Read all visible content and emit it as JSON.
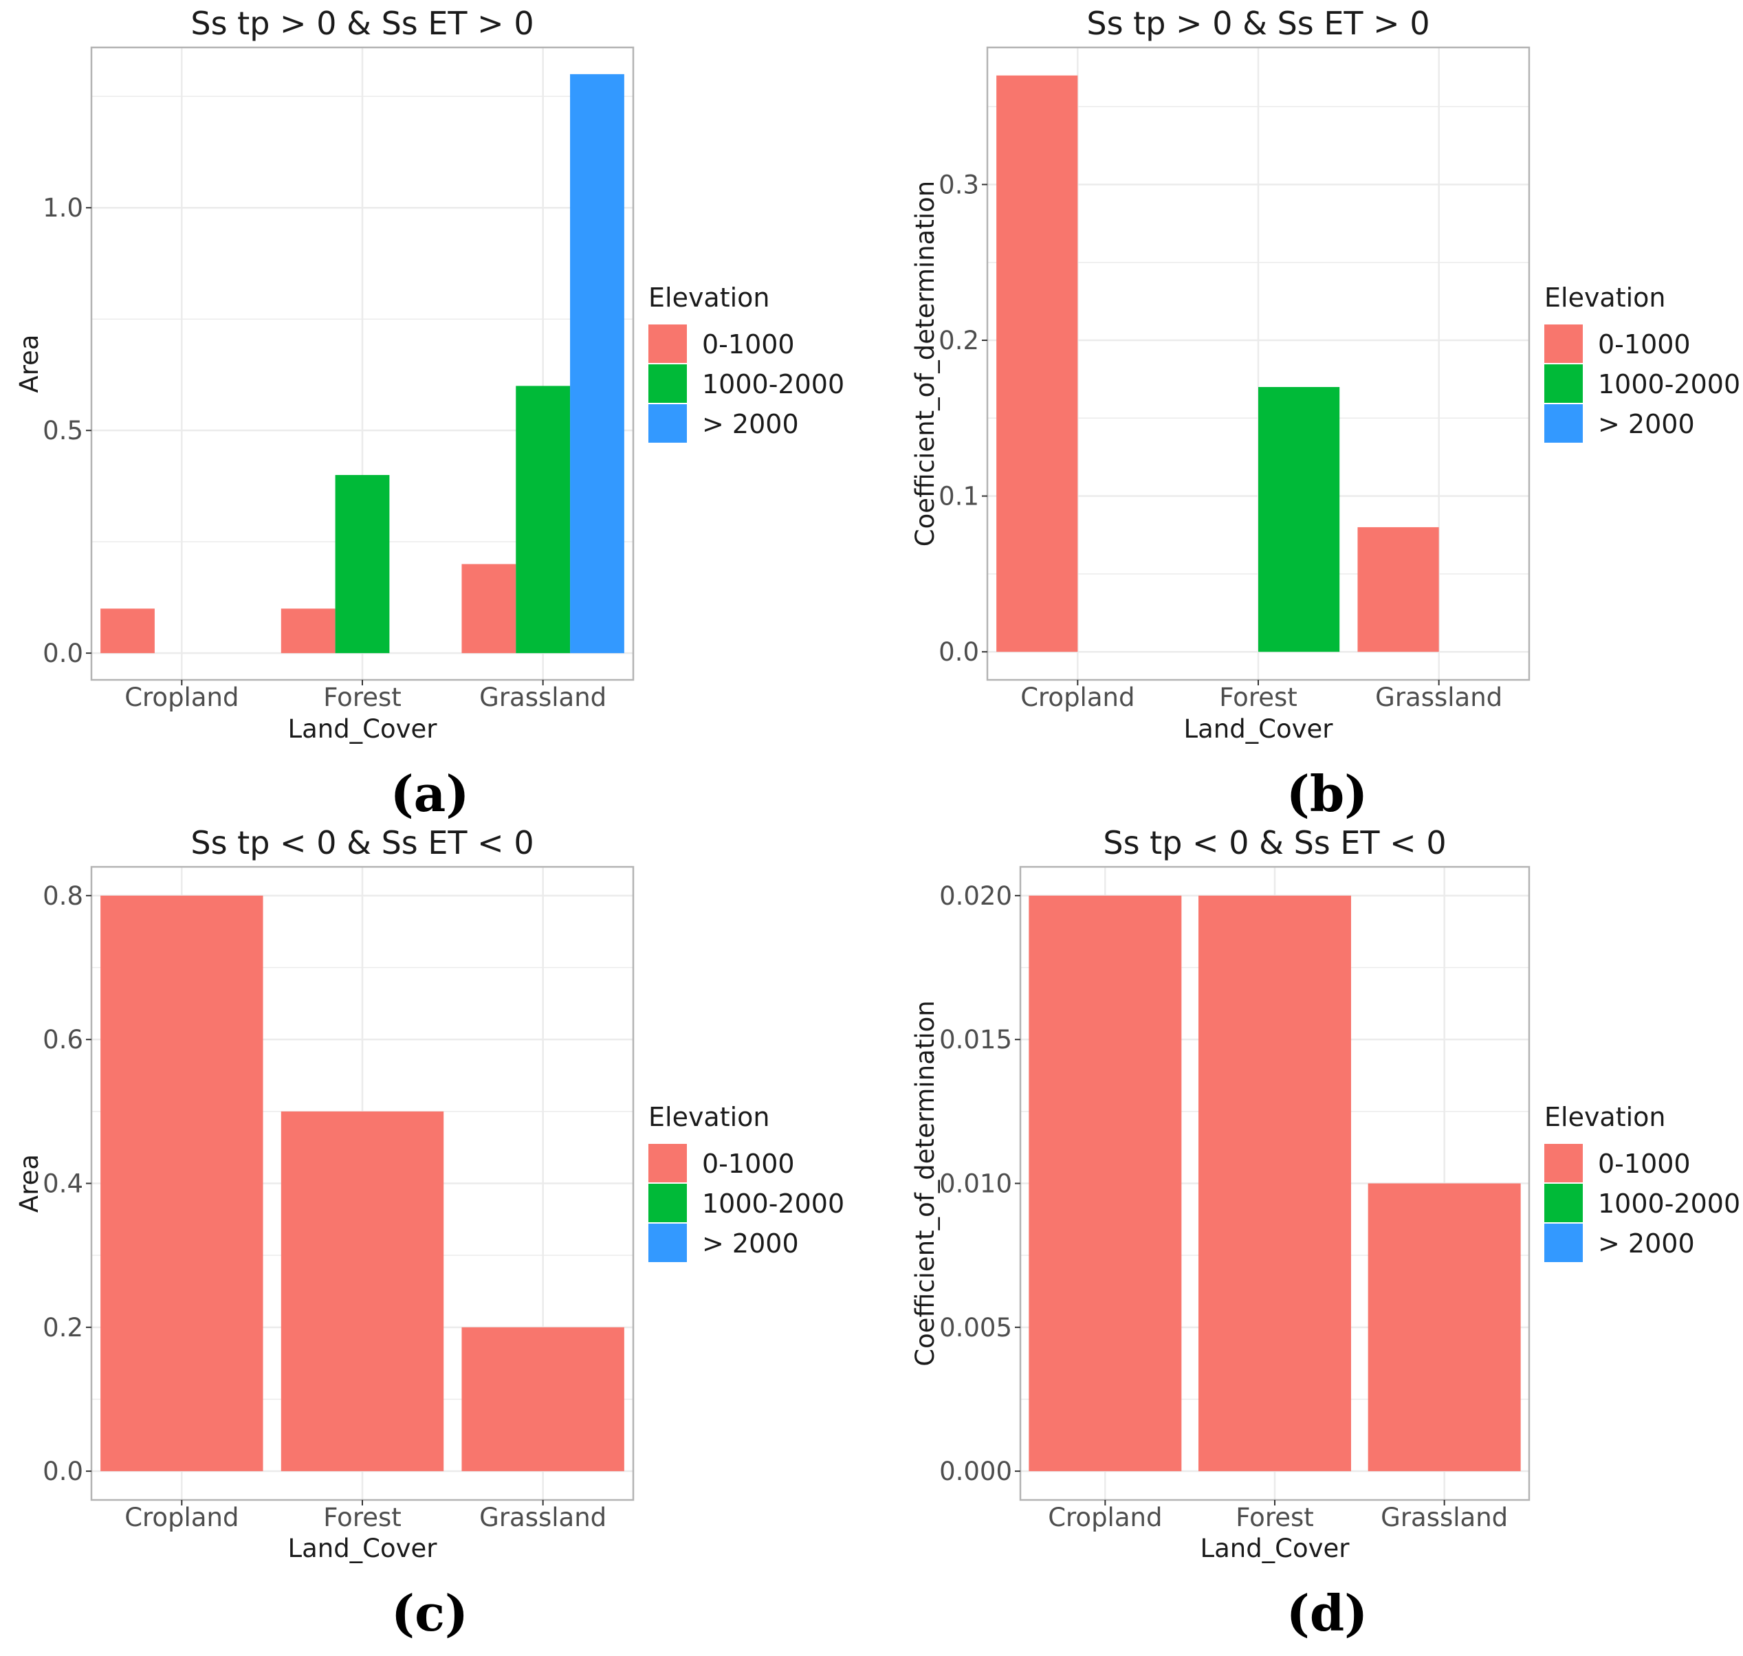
{
  "legend": {
    "title": "Elevation",
    "entries": [
      "0-1000",
      "1000-2000",
      "> 2000"
    ]
  },
  "colors": {
    "0-1000": "#f8766d",
    "1000-2000": "#00ba38",
    "> 2000": "#3399ff",
    "grid": "#ebebeb",
    "frame": "#b3b3b3"
  },
  "chart_data": [
    {
      "panel": "(a)",
      "type": "bar",
      "title": "Ss tp > 0 & Ss ET > 0",
      "xlabel": "Land_Cover",
      "ylabel": "Area",
      "categories": [
        "Cropland",
        "Forest",
        "Grassland"
      ],
      "series": [
        {
          "name": "0-1000",
          "values": [
            0.1,
            0.1,
            0.2
          ]
        },
        {
          "name": "1000-2000",
          "values": [
            null,
            0.4,
            0.6
          ]
        },
        {
          "name": "> 2000",
          "values": [
            null,
            null,
            1.3
          ]
        }
      ],
      "ylim": [
        -0.06,
        1.36
      ],
      "yticks": [
        0.0,
        0.5,
        1.0
      ],
      "ytick_labels": [
        "0.0",
        "0.5",
        "1.0"
      ]
    },
    {
      "panel": "(b)",
      "type": "bar",
      "title": "Ss tp > 0 & Ss ET > 0",
      "xlabel": "Land_Cover",
      "ylabel": "Coefficient_of_determination",
      "categories": [
        "Cropland",
        "Forest",
        "Grassland"
      ],
      "series": [
        {
          "name": "0-1000",
          "values": [
            0.37,
            null,
            0.08
          ]
        },
        {
          "name": "1000-2000",
          "values": [
            null,
            0.17,
            null
          ]
        }
      ],
      "ylim": [
        -0.018,
        0.388
      ],
      "yticks": [
        0.0,
        0.1,
        0.2,
        0.3
      ],
      "ytick_labels": [
        "0.0",
        "0.1",
        "0.2",
        "0.3"
      ]
    },
    {
      "panel": "(c)",
      "type": "bar",
      "title": "Ss tp < 0 & Ss ET < 0",
      "xlabel": "Land_Cover",
      "ylabel": "Area",
      "categories": [
        "Cropland",
        "Forest",
        "Grassland"
      ],
      "series": [
        {
          "name": "0-1000",
          "values": [
            0.8,
            0.5,
            0.2
          ]
        }
      ],
      "ylim": [
        -0.04,
        0.84
      ],
      "yticks": [
        0.0,
        0.2,
        0.4,
        0.6,
        0.8
      ],
      "ytick_labels": [
        "0.0",
        "0.2",
        "0.4",
        "0.6",
        "0.8"
      ]
    },
    {
      "panel": "(d)",
      "type": "bar",
      "title": "Ss tp < 0 & Ss ET < 0",
      "xlabel": "Land_Cover",
      "ylabel": "Coefficient_of_determination",
      "categories": [
        "Cropland",
        "Forest",
        "Grassland"
      ],
      "series": [
        {
          "name": "0-1000",
          "values": [
            0.02,
            0.02,
            0.01
          ]
        }
      ],
      "ylim": [
        -0.001,
        0.021
      ],
      "yticks": [
        0.0,
        0.005,
        0.01,
        0.015,
        0.02
      ],
      "ytick_labels": [
        "0.000",
        "0.005",
        "0.010",
        "0.015",
        "0.020"
      ]
    }
  ]
}
